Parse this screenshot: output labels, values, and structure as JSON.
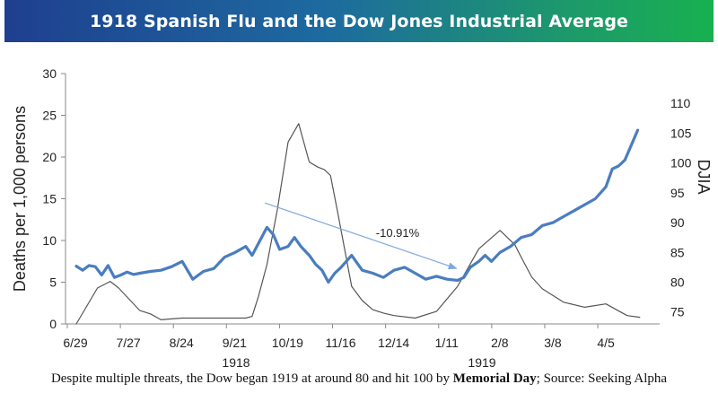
{
  "title": "1918 Spanish Flu and the Dow Jones Industrial Average",
  "caption": {
    "prefix": "Despite multiple threats, the Dow began 1919 at around 80 and hit 100 by ",
    "bold": "Memorial Day",
    "suffix": "; Source: Seeking Alpha"
  },
  "colors": {
    "dow": "#4a7dbf",
    "deaths": "#555555",
    "arrow": "#7fa8dc",
    "axis": "#888888"
  },
  "chart_data": {
    "type": "line",
    "x_tick_labels": [
      "6/29",
      "7/27",
      "8/24",
      "9/21",
      "10/19",
      "11/16",
      "12/14",
      "1/11",
      "2/8",
      "3/8",
      "4/5"
    ],
    "x_group_labels": [
      "1918",
      "1919"
    ],
    "ylabel_left": "Deaths per 1,000 persons",
    "ylabel_right": "DJIA",
    "ylim_left": [
      0,
      30
    ],
    "yticks_left": [
      0,
      5,
      10,
      15,
      20,
      25,
      30
    ],
    "ylim_right": [
      73,
      115
    ],
    "yticks_right": [
      75,
      80,
      85,
      90,
      95,
      100,
      105,
      110
    ],
    "annotation": "-10.91%",
    "series": [
      {
        "name": "Deaths per 1,000 persons",
        "axis": "left",
        "x": [
          0,
          1,
          1.6,
          2,
          3,
          3.5,
          4,
          4.5,
          5,
          5.6,
          6,
          6.5,
          7,
          7.4,
          8,
          8.3,
          8.6,
          9,
          9.5,
          10,
          10.5,
          11,
          11.4,
          11.7,
          12,
          12.3,
          13,
          13.5,
          14,
          14.5,
          15,
          16,
          17,
          18,
          19,
          20,
          20.7,
          21,
          21.5,
          22,
          23,
          24,
          25,
          26,
          26.6
        ],
        "y": [
          0,
          4.3,
          5.1,
          4.3,
          1.6,
          1.2,
          0.5,
          0.6,
          0.7,
          0.7,
          0.7,
          0.7,
          0.7,
          0.7,
          0.7,
          0.9,
          3.3,
          7.1,
          13.8,
          21.8,
          24.0,
          19.4,
          18.8,
          18.5,
          17.8,
          13.9,
          4.5,
          2.8,
          1.7,
          1.3,
          1.0,
          0.7,
          1.5,
          4.5,
          9.0,
          11.2,
          9.5,
          8.0,
          5.6,
          4.2,
          2.6,
          2.0,
          2.4,
          1.0,
          0.8
        ]
      },
      {
        "name": "DJIA",
        "axis": "right",
        "x": [
          0,
          0.3,
          0.6,
          0.9,
          1.2,
          1.5,
          1.8,
          2.1,
          2.4,
          2.7,
          3,
          3.5,
          4,
          4.5,
          5,
          5.5,
          6,
          6.5,
          7,
          7.5,
          8,
          8.3,
          8.6,
          9,
          9.3,
          9.6,
          10,
          10.3,
          10.6,
          11,
          11.3,
          11.6,
          11.9,
          12.2,
          12.5,
          13,
          13.5,
          14,
          14.5,
          15,
          15.5,
          16,
          16.5,
          17,
          17.5,
          18,
          18.3,
          18.6,
          19,
          19.3,
          19.6,
          20,
          20.5,
          21,
          21.5,
          22,
          22.5,
          23,
          23.5,
          24,
          24.5,
          25,
          25.3,
          25.6,
          25.9,
          26.2,
          26.5
        ],
        "y": [
          82.7,
          82.0,
          82.8,
          82.6,
          81.2,
          82.8,
          80.8,
          81.2,
          81.7,
          81.3,
          81.5,
          81.8,
          82.0,
          82.6,
          83.5,
          80.5,
          81.8,
          82.3,
          84.2,
          85.0,
          86.0,
          84.5,
          86.5,
          89.2,
          88.0,
          85.5,
          86.0,
          87.5,
          86.0,
          84.5,
          83.0,
          82.0,
          80.0,
          81.5,
          82.5,
          84.5,
          82.0,
          81.5,
          80.8,
          82.0,
          82.5,
          81.5,
          80.5,
          81.0,
          80.5,
          80.3,
          80.8,
          82.5,
          83.5,
          84.5,
          83.5,
          85.0,
          86.0,
          87.5,
          88.0,
          89.5,
          90.0,
          91.0,
          92.0,
          93.0,
          94.0,
          96.0,
          99.0,
          99.5,
          100.5,
          103.0,
          105.5
        ]
      }
    ]
  }
}
